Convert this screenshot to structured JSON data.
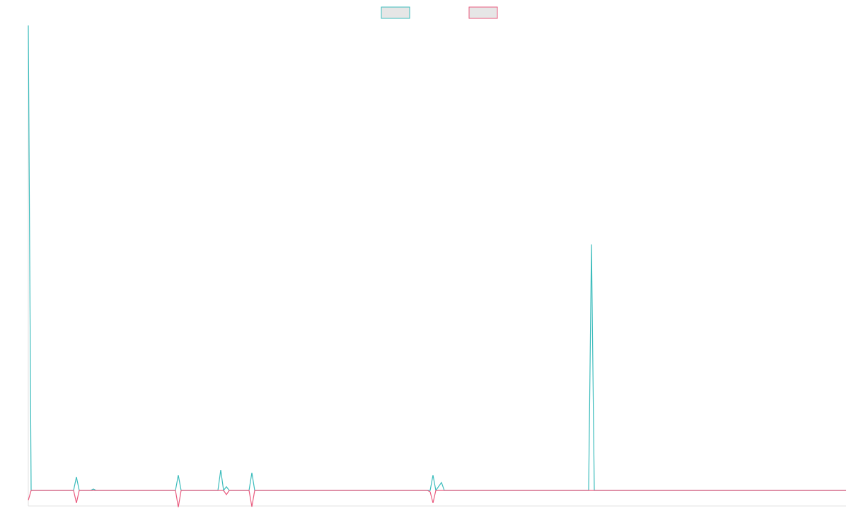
{
  "chart_data": {
    "type": "line",
    "legend": "top",
    "x": [
      0,
      1,
      16,
      17,
      18,
      22,
      23,
      24,
      52,
      53,
      54,
      67,
      68,
      69,
      70,
      71,
      78,
      79,
      80,
      141,
      142,
      143,
      144,
      146,
      147,
      148,
      198,
      199,
      200,
      289
    ],
    "xlim": [
      0,
      289
    ],
    "ylim": [
      -3.34,
      100
    ],
    "series": [
      {
        "color": "#3bbcbc",
        "values": [
          100,
          0,
          0,
          2.9,
          0,
          0,
          0.3,
          0,
          0,
          3.3,
          0,
          0,
          4.4,
          0,
          0.8,
          0,
          0,
          3.8,
          0,
          0,
          0,
          3.3,
          0,
          1.7,
          0,
          0,
          0,
          52.9,
          0,
          0
        ]
      },
      {
        "color": "#ea5a7e",
        "values": [
          -2.1,
          0,
          0,
          -2.7,
          0,
          0,
          0,
          0,
          0,
          -3.6,
          0,
          0,
          0,
          0,
          -0.9,
          0,
          0,
          -3.5,
          0,
          0,
          -0.3,
          -2.7,
          0,
          0,
          0,
          0,
          0,
          0,
          0,
          0
        ]
      }
    ]
  }
}
